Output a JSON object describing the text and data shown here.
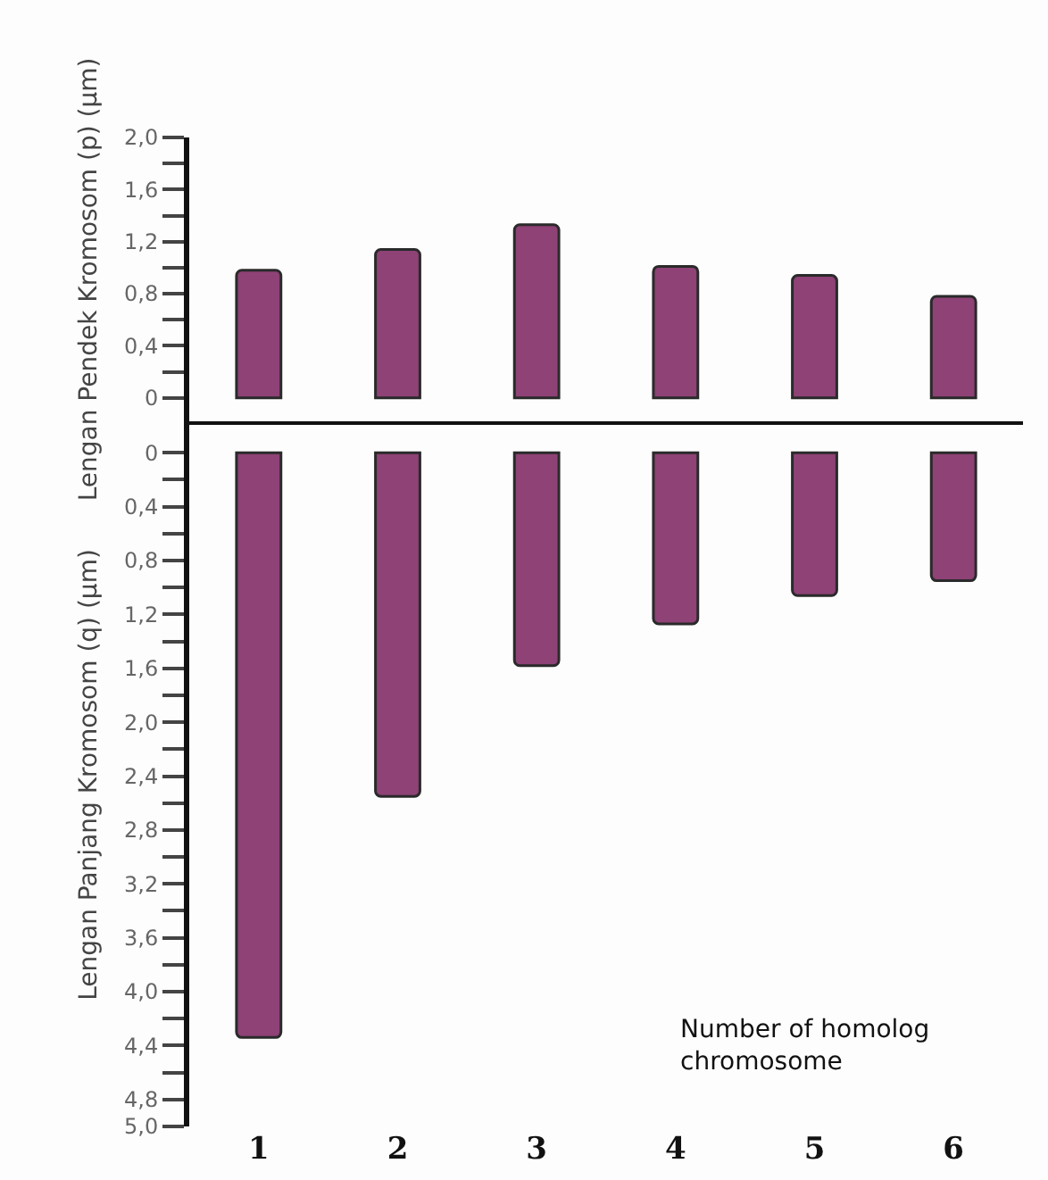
{
  "chart_data": [
    {
      "type": "bar",
      "ylabel": "Lengan Pendek Kromosom (p) (µm)",
      "categories": [
        "1",
        "2",
        "3",
        "4",
        "5",
        "6"
      ],
      "series": [
        {
          "color": "#8e4276",
          "values": [
            0.98,
            1.14,
            1.33,
            1.01,
            0.94,
            0.78
          ]
        }
      ],
      "ylim": [
        -0.18,
        2.0
      ],
      "yticks": [
        0,
        {
          "value": 0.2,
          "label": null
        },
        {
          "value": 0.4,
          "label": "0,4"
        },
        {
          "value": 0.6,
          "label": null
        },
        {
          "value": 0.8,
          "label": "0,8"
        },
        {
          "value": 1.0,
          "label": null
        },
        {
          "value": 1.2,
          "label": "1,2"
        },
        {
          "value": 1.4,
          "label": null
        },
        {
          "value": 1.6,
          "label": "1,6"
        },
        {
          "value": 1.8,
          "label": null
        },
        {
          "value": 2.0,
          "label": "2,0"
        }
      ],
      "tick_labels": "y",
      "grid": false
    },
    {
      "type": "bar",
      "ylabel": "Lengan Panjang Kromosom (q) (µm)",
      "xlabel": "Number of homolog chromosome",
      "categories": [
        "1",
        "2",
        "3",
        "4",
        "5",
        "6"
      ],
      "series": [
        {
          "color": "#8e4276",
          "values": [
            4.34,
            2.55,
            1.58,
            1.27,
            1.06,
            0.95
          ]
        }
      ],
      "ylim": [
        5.0,
        -0.22
      ],
      "yticks": [
        0,
        {
          "value": 0.2,
          "label": null
        },
        {
          "value": 0.4,
          "label": "0,4"
        },
        {
          "value": 0.6,
          "label": null
        },
        {
          "value": 0.8,
          "label": "0,8"
        },
        {
          "value": 1.0,
          "label": null
        },
        {
          "value": 1.2,
          "label": "1,2"
        },
        {
          "value": 1.4,
          "label": null
        },
        {
          "value": 1.6,
          "label": "1,6"
        },
        {
          "value": 1.8,
          "label": null
        },
        {
          "value": 2.0,
          "label": "2,0"
        },
        {
          "value": 2.2,
          "label": null
        },
        {
          "value": 2.4,
          "label": "2,4"
        },
        {
          "value": 2.6,
          "label": null
        },
        {
          "value": 2.8,
          "label": "2,8"
        },
        {
          "value": 3.0,
          "label": null
        },
        {
          "value": 3.2,
          "label": "3,2"
        },
        {
          "value": 3.4,
          "label": null
        },
        {
          "value": 3.6,
          "label": "3,6"
        },
        {
          "value": 3.8,
          "label": null
        },
        {
          "value": 4.0,
          "label": "4,0"
        },
        {
          "value": 4.2,
          "label": null
        },
        {
          "value": 4.4,
          "label": "4,4"
        },
        {
          "value": 4.6,
          "label": null
        },
        {
          "value": 4.8,
          "label": "4,8"
        },
        {
          "value": 5.0,
          "label": "5,0"
        }
      ],
      "grid": false
    }
  ]
}
